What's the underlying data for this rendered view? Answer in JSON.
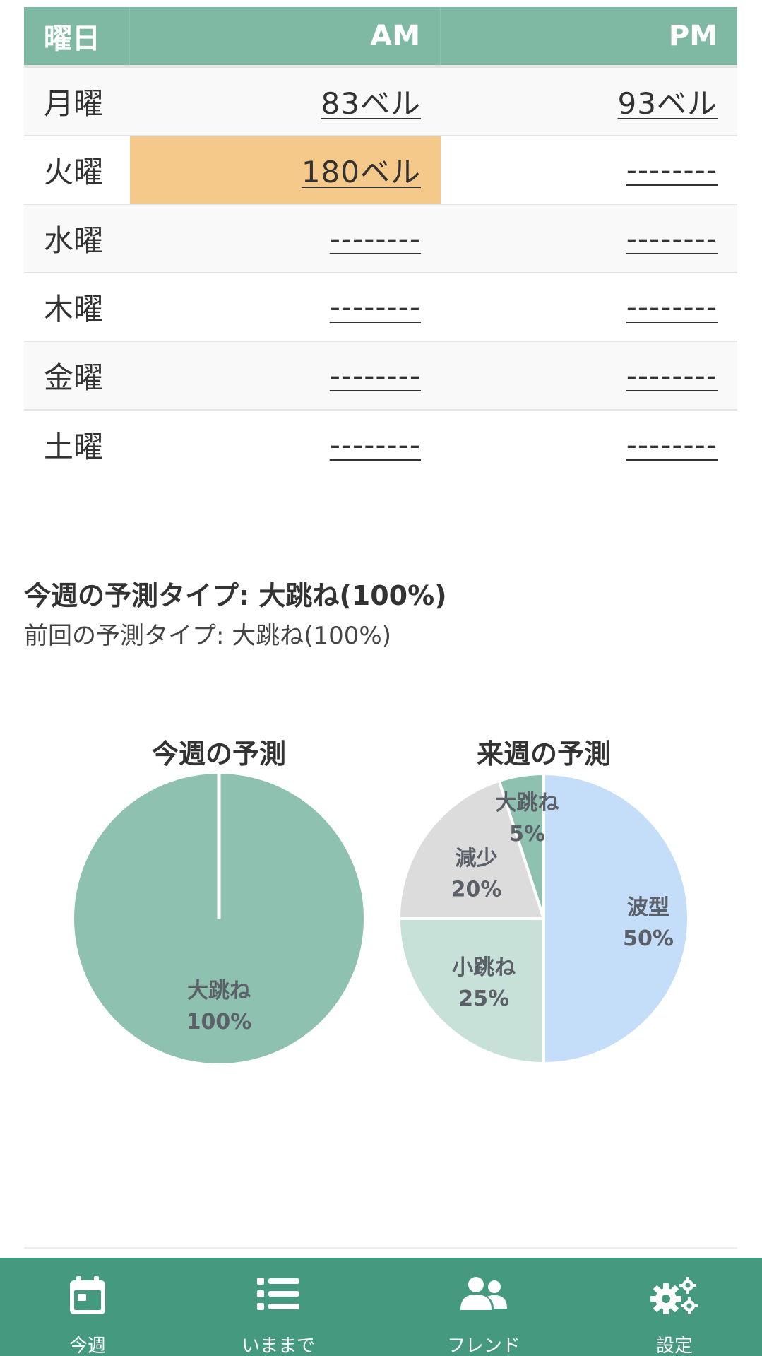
{
  "table": {
    "headers": {
      "day": "曜日",
      "am": "AM",
      "pm": "PM"
    },
    "rows": [
      {
        "day": "月曜",
        "am": "83ベル",
        "pm": "93ベル"
      },
      {
        "day": "火曜",
        "am": "180ベル",
        "pm": "--------"
      },
      {
        "day": "水曜",
        "am": "--------",
        "pm": "--------"
      },
      {
        "day": "木曜",
        "am": "--------",
        "pm": "--------"
      },
      {
        "day": "金曜",
        "am": "--------",
        "pm": "--------"
      },
      {
        "day": "土曜",
        "am": "--------",
        "pm": "--------"
      }
    ],
    "highlight_color": "#f5c98a",
    "header_color": "#7fb9a4"
  },
  "prediction": {
    "current": "今週の予測タイプ: 大跳ね(100%)",
    "previous": "前回の予測タイプ: 大跳ね(100%)"
  },
  "chart_data": [
    {
      "type": "pie",
      "title": "今週の予測",
      "slices": [
        {
          "label": "大跳ね",
          "value": 100,
          "value_label": "100%",
          "color": "#8fc1b0"
        }
      ]
    },
    {
      "type": "pie",
      "title": "来週の予測",
      "slices": [
        {
          "label": "波型",
          "value": 50,
          "value_label": "50%",
          "color": "#c4ddf8"
        },
        {
          "label": "小跳ね",
          "value": 25,
          "value_label": "25%",
          "color": "#c7e0d8"
        },
        {
          "label": "減少",
          "value": 20,
          "value_label": "20%",
          "color": "#dcdcdc"
        },
        {
          "label": "大跳ね",
          "value": 5,
          "value_label": "5%",
          "color": "#8fc1b0"
        }
      ]
    }
  ],
  "nav": {
    "background": "#45997f",
    "items": [
      {
        "label": "今週",
        "icon": "calendar-icon"
      },
      {
        "label": "いままで",
        "icon": "list-icon"
      },
      {
        "label": "フレンド",
        "icon": "users-icon"
      },
      {
        "label": "設定",
        "icon": "gears-icon"
      }
    ]
  }
}
